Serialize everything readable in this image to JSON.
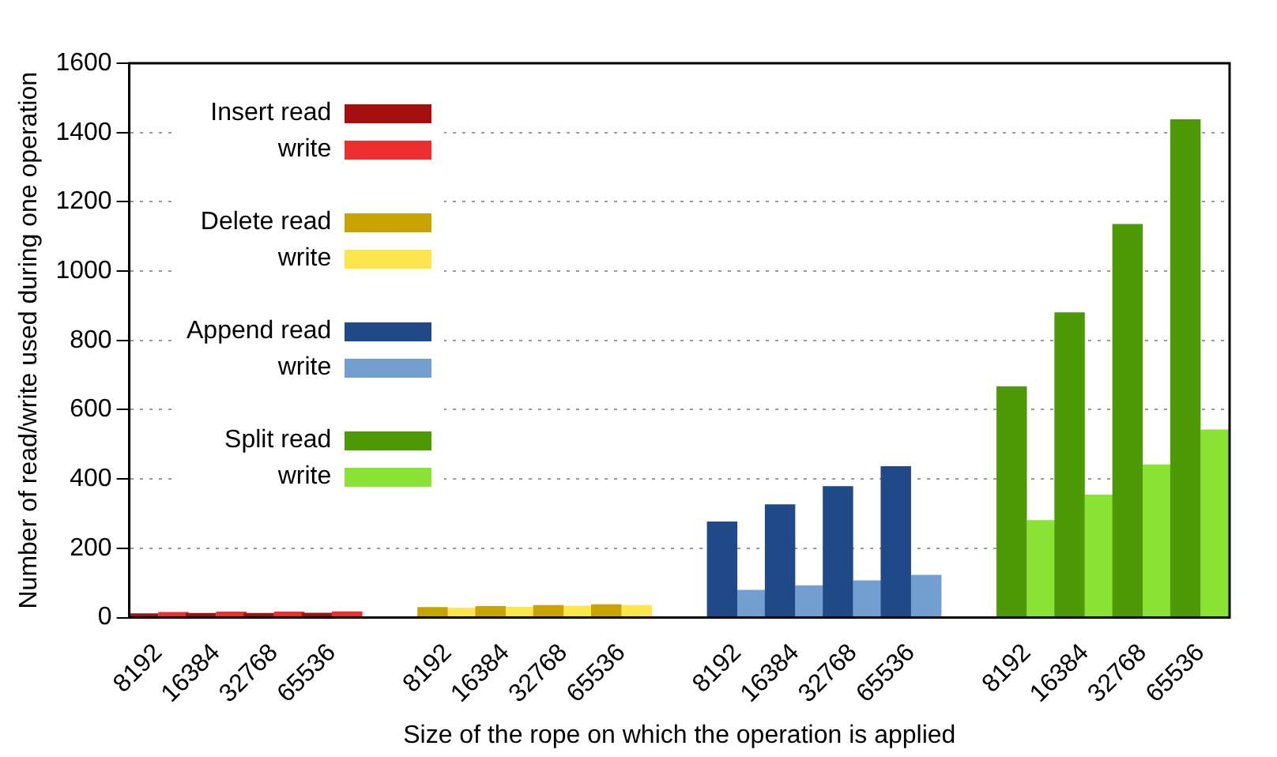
{
  "chart_data": {
    "type": "bar",
    "xlabel": "Size of the rope on which the operation is applied",
    "ylabel": "Number of read/write used during one operation",
    "categories": [
      "8192",
      "16384",
      "32768",
      "65536",
      null,
      "8192",
      "16384",
      "32768",
      "65536",
      null,
      "8192",
      "16384",
      "32768",
      "65536",
      null,
      "8192",
      "16384",
      "32768",
      "65536"
    ],
    "series": [
      {
        "name": "Insert read",
        "color": "#a50f0f",
        "values": [
          12,
          13,
          13,
          14,
          null,
          null,
          null,
          null,
          null,
          null,
          null,
          null,
          null,
          null,
          null,
          null,
          null,
          null,
          null
        ]
      },
      {
        "name": "write",
        "color": "#ee2f2f",
        "values": [
          16,
          17,
          17,
          18,
          null,
          null,
          null,
          null,
          null,
          null,
          null,
          null,
          null,
          null,
          null,
          null,
          null,
          null,
          null
        ]
      },
      {
        "name": "Delete read",
        "color": "#c9a300",
        "values": [
          null,
          null,
          null,
          null,
          null,
          30,
          33,
          36,
          38,
          null,
          null,
          null,
          null,
          null,
          null,
          null,
          null,
          null,
          null
        ]
      },
      {
        "name": "write",
        "color": "#fde64c",
        "values": [
          null,
          null,
          null,
          null,
          null,
          28,
          31,
          34,
          36,
          null,
          null,
          null,
          null,
          null,
          null,
          null,
          null,
          null,
          null
        ]
      },
      {
        "name": "Append read",
        "color": "#204a87",
        "values": [
          null,
          null,
          null,
          null,
          null,
          null,
          null,
          null,
          null,
          null,
          277,
          327,
          379,
          437,
          null,
          null,
          null,
          null,
          null
        ]
      },
      {
        "name": "write",
        "color": "#729fcf",
        "values": [
          null,
          null,
          null,
          null,
          null,
          null,
          null,
          null,
          null,
          null,
          80,
          93,
          107,
          123,
          null,
          null,
          null,
          null,
          null
        ]
      },
      {
        "name": "Split read",
        "color": "#4e9a06",
        "values": [
          null,
          null,
          null,
          null,
          null,
          null,
          null,
          null,
          null,
          null,
          null,
          null,
          null,
          null,
          null,
          667,
          881,
          1136,
          1438
        ]
      },
      {
        "name": "write",
        "color": "#8ae234",
        "values": [
          null,
          null,
          null,
          null,
          null,
          null,
          null,
          null,
          null,
          null,
          null,
          null,
          null,
          null,
          null,
          281,
          355,
          442,
          543
        ]
      }
    ],
    "ylim": [
      0,
      1600
    ],
    "yticks": [
      0,
      200,
      400,
      600,
      800,
      1000,
      1200,
      1400,
      1600
    ],
    "grid": "y",
    "legend": "top left"
  }
}
